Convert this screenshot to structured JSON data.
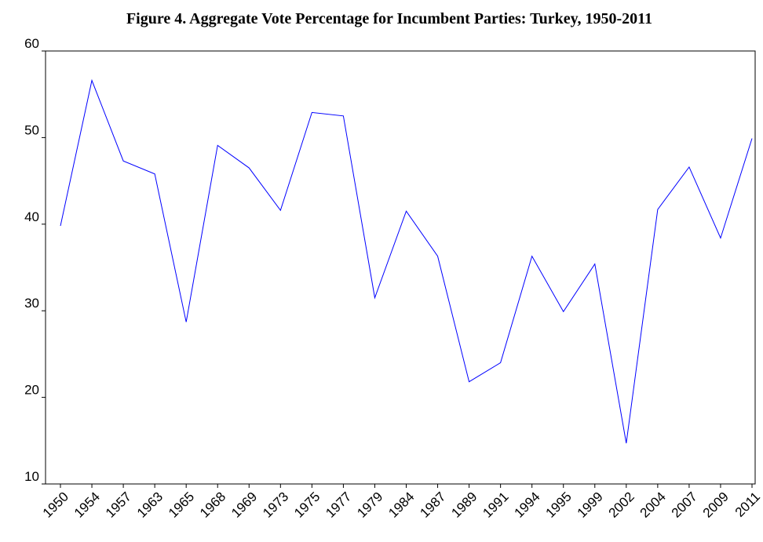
{
  "chart_data": {
    "type": "line",
    "title": "Figure 4. Aggregate Vote Percentage for Incumbent Parties: Turkey, 1950-2011",
    "categories": [
      "1950",
      "1954",
      "1957",
      "1963",
      "1965",
      "1968",
      "1969",
      "1973",
      "1975",
      "1977",
      "1979",
      "1984",
      "1987",
      "1989",
      "1991",
      "1994",
      "1995",
      "1999",
      "2002",
      "2004",
      "2007",
      "2009",
      "2011"
    ],
    "series": [
      {
        "color": "#0000ff",
        "values": [
          39.8,
          56.6,
          47.3,
          45.8,
          28.7,
          49.1,
          46.5,
          41.6,
          52.9,
          52.5,
          31.5,
          41.5,
          36.3,
          21.8,
          24.0,
          36.3,
          29.9,
          35.4,
          14.7,
          41.7,
          46.6,
          38.4,
          49.9
        ]
      }
    ],
    "ylim": [
      10,
      60
    ],
    "yticks": [
      10,
      20,
      30,
      40,
      50,
      60
    ]
  }
}
